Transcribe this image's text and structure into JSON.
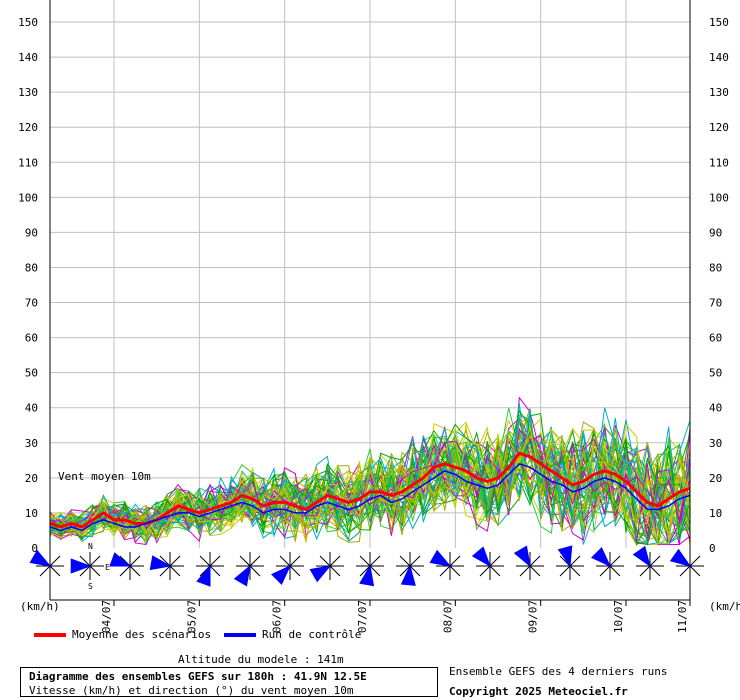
{
  "chart_data": {
    "type": "line",
    "annotation": "Vent moyen 10m",
    "ylim": [
      0,
      150
    ],
    "yticks": [
      0,
      10,
      20,
      30,
      40,
      50,
      60,
      70,
      80,
      90,
      100,
      110,
      120,
      130,
      140,
      150
    ],
    "unit_left": "(km/h)",
    "unit_right": "(km/h)",
    "x_dates": [
      "04/07",
      "05/07",
      "06/07",
      "07/07",
      "08/07",
      "09/07",
      "10/07",
      "11/07"
    ],
    "xlim_hours": [
      0,
      180
    ],
    "date_positions_hours": [
      18,
      42,
      66,
      90,
      114,
      138,
      162,
      186
    ],
    "grid": true,
    "compass": {
      "n": "N",
      "e": "E",
      "s": "S"
    },
    "legend": [
      {
        "label": "Moyenne des scénarios",
        "color": "#ff0000"
      },
      {
        "label": "Run de contrôle",
        "color": "#0000ff"
      }
    ],
    "series": [
      {
        "name": "Moyenne des scénarios",
        "color": "#ff0000",
        "x": [
          0,
          3,
          6,
          9,
          12,
          15,
          18,
          21,
          24,
          27,
          30,
          33,
          36,
          39,
          42,
          45,
          48,
          51,
          54,
          57,
          60,
          63,
          66,
          69,
          72,
          75,
          78,
          81,
          84,
          87,
          90,
          93,
          96,
          99,
          102,
          105,
          108,
          111,
          114,
          117,
          120,
          123,
          126,
          129,
          132,
          135,
          138,
          141,
          144,
          147,
          150,
          153,
          156,
          159,
          162,
          165,
          168,
          171,
          174,
          177,
          180
        ],
        "values": [
          7,
          6,
          7,
          6,
          8,
          10,
          8,
          8,
          7,
          7,
          8,
          10,
          12,
          11,
          10,
          11,
          12,
          13,
          15,
          14,
          12,
          13,
          13,
          12,
          11,
          13,
          15,
          14,
          13,
          14,
          16,
          16,
          15,
          16,
          18,
          20,
          23,
          24,
          23,
          22,
          20,
          19,
          20,
          23,
          27,
          26,
          24,
          22,
          20,
          18,
          19,
          21,
          22,
          21,
          19,
          16,
          13,
          12,
          14,
          16,
          17
        ]
      },
      {
        "name": "Run de contrôle",
        "color": "#0000ff",
        "x": [
          0,
          3,
          6,
          9,
          12,
          15,
          18,
          21,
          24,
          27,
          30,
          33,
          36,
          39,
          42,
          45,
          48,
          51,
          54,
          57,
          60,
          63,
          66,
          69,
          72,
          75,
          78,
          81,
          84,
          87,
          90,
          93,
          96,
          99,
          102,
          105,
          108,
          111,
          114,
          117,
          120,
          123,
          126,
          129,
          132,
          135,
          138,
          141,
          144,
          147,
          150,
          153,
          156,
          159,
          162,
          165,
          168,
          171,
          174,
          177,
          180
        ],
        "values": [
          6,
          5,
          6,
          5,
          7,
          8,
          7,
          6,
          6,
          7,
          8,
          9,
          10,
          10,
          9,
          10,
          11,
          12,
          13,
          12,
          10,
          11,
          11,
          10,
          10,
          12,
          13,
          12,
          11,
          12,
          14,
          15,
          13,
          14,
          16,
          18,
          20,
          22,
          21,
          19,
          18,
          17,
          18,
          21,
          24,
          23,
          21,
          19,
          18,
          16,
          17,
          19,
          20,
          19,
          17,
          14,
          11,
          11,
          12,
          14,
          15
        ]
      }
    ],
    "ensemble_colors": [
      "#00aa00",
      "#33cc33",
      "#cc00cc",
      "#00aacc",
      "#cccc00",
      "#aaaa00"
    ],
    "wind_direction_deg": [
      300,
      270,
      290,
      280,
      200,
      210,
      225,
      240,
      190,
      185,
      300,
      320,
      330,
      345,
      315,
      325,
      305
    ]
  },
  "footer": {
    "altitude": "Altitude du modele : 141m",
    "title": "Diagramme des ensembles GEFS sur 180h : 41.9N 12.5E",
    "subtitle": "Vitesse (km/h) et direction (°) du vent moyen 10m",
    "runs_note": "Ensemble GEFS des 4 derniers runs",
    "copyright": "Copyright 2025 Meteociel.fr"
  }
}
